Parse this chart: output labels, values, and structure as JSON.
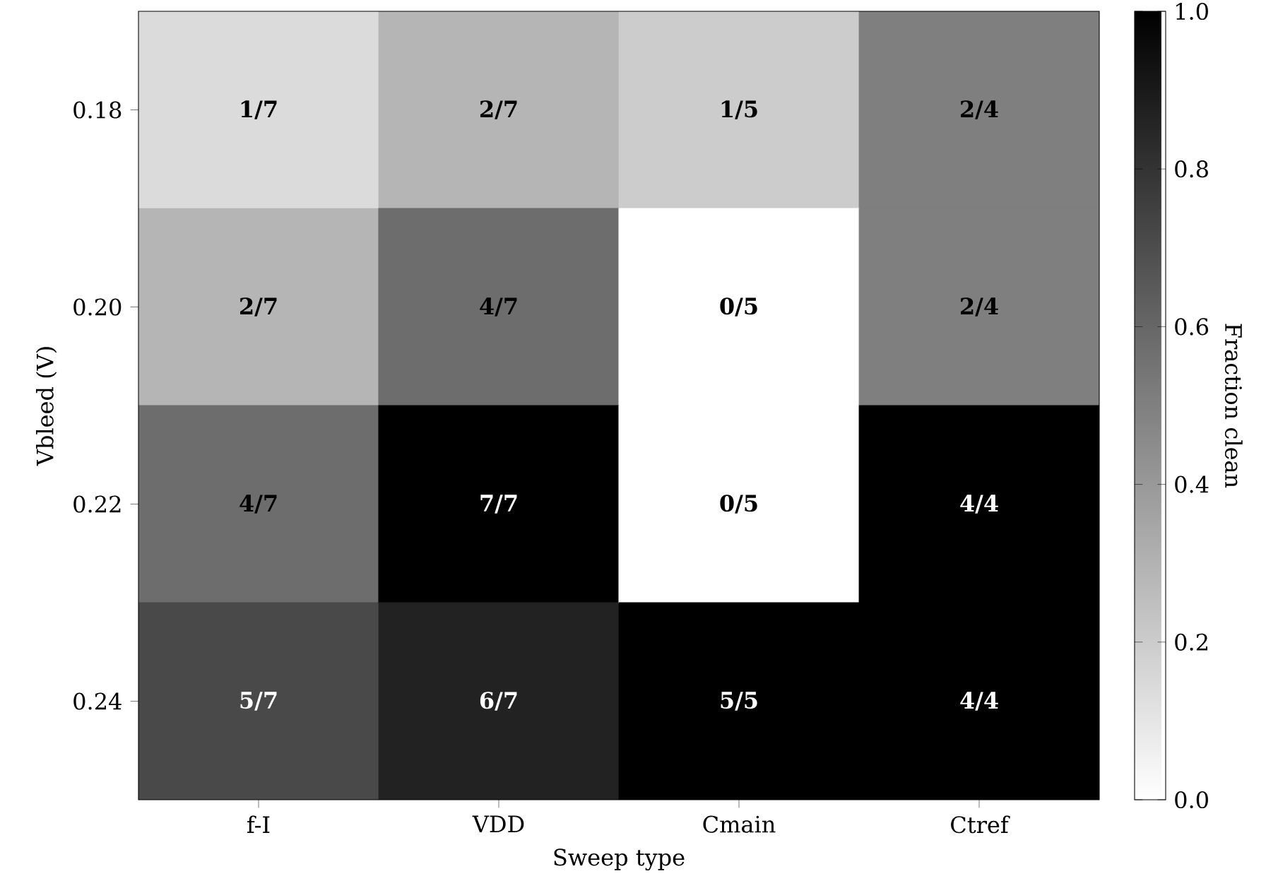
{
  "chart_data": {
    "type": "heatmap",
    "xlabel": "Sweep type",
    "ylabel": "Vbleed (V)",
    "clabel": "Fraction clean",
    "categories": [
      "f-I",
      "VDD",
      "Cmain",
      "Ctref"
    ],
    "y_categories": [
      "0.18",
      "0.20",
      "0.22",
      "0.24"
    ],
    "cells": [
      [
        0.14,
        0.29,
        0.2,
        0.5
      ],
      [
        0.29,
        0.57,
        0,
        0.5
      ],
      [
        0.57,
        1,
        0,
        1
      ],
      [
        0.71,
        0.86,
        1,
        1
      ]
    ],
    "cell_labels": [
      [
        "1/7",
        "2/7",
        "1/5",
        "2/4"
      ],
      [
        "2/7",
        "4/7",
        "0/5",
        "2/4"
      ],
      [
        "4/7",
        "7/7",
        "0/5",
        "4/4"
      ],
      [
        "5/7",
        "6/7",
        "5/5",
        "4/4"
      ]
    ],
    "clim": [
      0,
      1
    ],
    "cticks": [
      {
        "value": 0,
        "label": "0.0"
      },
      {
        "value": 0.2,
        "label": "0.2"
      },
      {
        "value": 0.4,
        "label": "0.4"
      },
      {
        "value": 0.6,
        "label": "0.6"
      },
      {
        "value": 0.8,
        "label": "0.8"
      },
      {
        "value": 1,
        "label": "1.0"
      }
    ]
  }
}
